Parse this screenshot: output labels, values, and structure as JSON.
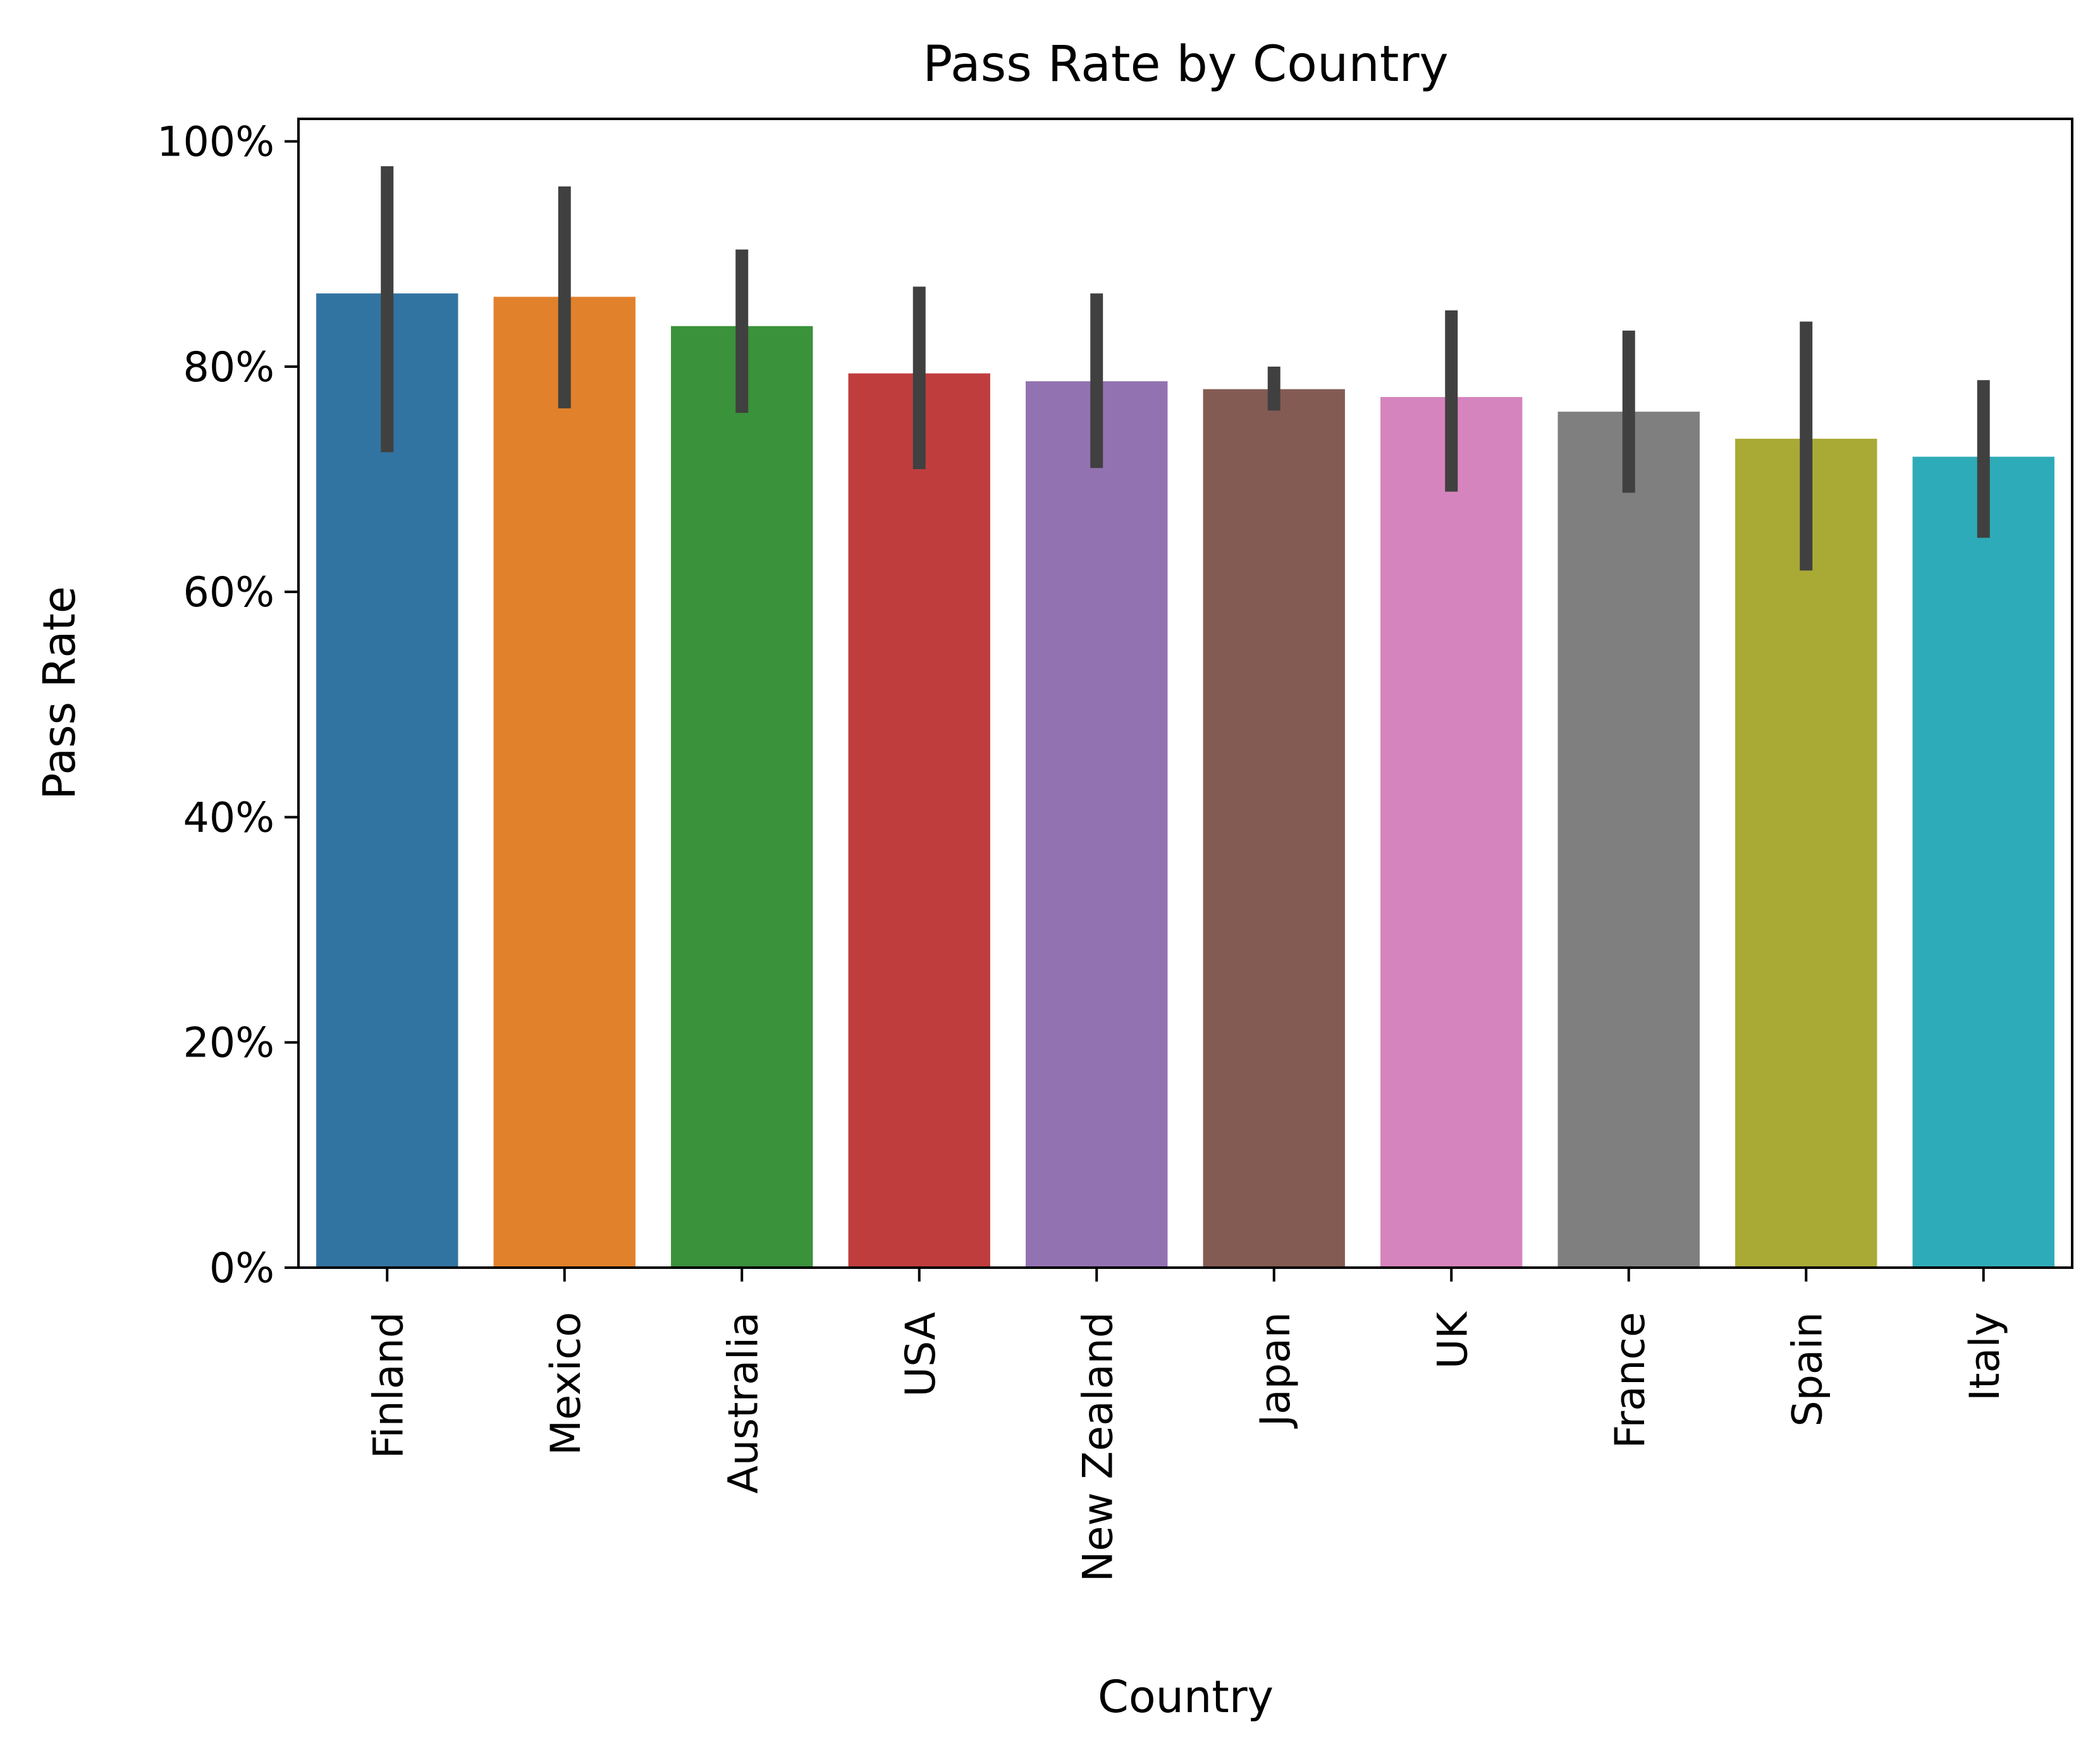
{
  "chart_data": {
    "type": "bar",
    "title": "Pass Rate by Country",
    "xlabel": "Country",
    "ylabel": "Pass Rate",
    "ylim": [
      0,
      1.02
    ],
    "y_ticks": [
      0,
      0.2,
      0.4,
      0.6,
      0.8,
      1.0
    ],
    "y_tick_labels": [
      "0%",
      "20%",
      "40%",
      "60%",
      "80%",
      "100%"
    ],
    "categories": [
      "Finland",
      "Mexico",
      "Australia",
      "USA",
      "New Zealand",
      "Japan",
      "UK",
      "France",
      "Spain",
      "Italy"
    ],
    "values": [
      0.865,
      0.862,
      0.836,
      0.794,
      0.787,
      0.78,
      0.773,
      0.76,
      0.736,
      0.72
    ],
    "error_low": [
      0.724,
      0.763,
      0.759,
      0.709,
      0.71,
      0.761,
      0.689,
      0.688,
      0.619,
      0.648
    ],
    "error_high": [
      0.978,
      0.96,
      0.904,
      0.871,
      0.865,
      0.8,
      0.85,
      0.832,
      0.84,
      0.788
    ],
    "colors": [
      "#3274a1",
      "#e1812c",
      "#3a923a",
      "#c03d3e",
      "#9372b2",
      "#845b53",
      "#d684bd",
      "#7f7f7f",
      "#a9aa35",
      "#2eabb8"
    ],
    "error_color": "#404040",
    "grid": false,
    "legend": "none"
  }
}
